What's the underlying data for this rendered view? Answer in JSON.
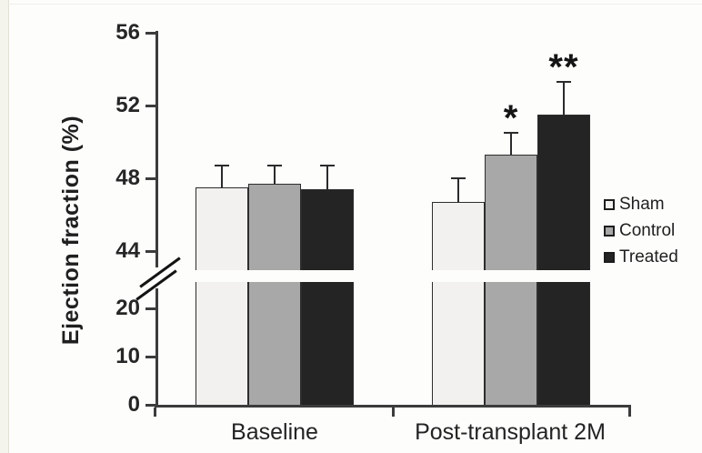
{
  "chart_data": {
    "type": "bar",
    "title": "",
    "xlabel": "",
    "ylabel": "Ejection fraction (%)",
    "categories": [
      "Baseline",
      "Post-transplant 2M"
    ],
    "category_keys": [
      "baseline",
      "post-transplant-2m"
    ],
    "series": [
      {
        "name": "Sham",
        "color": "#f2f1ef",
        "values": [
          47.5,
          46.7
        ],
        "errors": [
          1.2,
          1.3
        ],
        "significance": [
          "",
          ""
        ]
      },
      {
        "name": "Control",
        "color": "#a8a8a8",
        "values": [
          47.7,
          49.3
        ],
        "errors": [
          1.0,
          1.2
        ],
        "significance": [
          "",
          "*"
        ]
      },
      {
        "name": "Treated",
        "color": "#242424",
        "values": [
          47.4,
          51.5
        ],
        "errors": [
          1.3,
          1.8
        ],
        "significance": [
          "",
          "**"
        ]
      }
    ],
    "y_axis": {
      "broken": true,
      "lower_segment": {
        "ticks": [
          0,
          10,
          20
        ],
        "range": [
          0,
          22
        ]
      },
      "upper_segment": {
        "ticks": [
          44,
          48,
          52,
          56
        ],
        "range": [
          44,
          56
        ]
      }
    },
    "legend": {
      "position": "right",
      "entries": [
        "Sham",
        "Control",
        "Treated"
      ]
    },
    "grid": false,
    "error_bars": "upper SD whiskers",
    "annotations": [
      {
        "text": "*",
        "target": "Control @ Post-transplant 2M"
      },
      {
        "text": "**",
        "target": "Treated @ Post-transplant 2M"
      }
    ],
    "colors": {
      "axis": "#3c3c3c",
      "text": "#222222",
      "bar_border": "#2d2d2d"
    }
  }
}
